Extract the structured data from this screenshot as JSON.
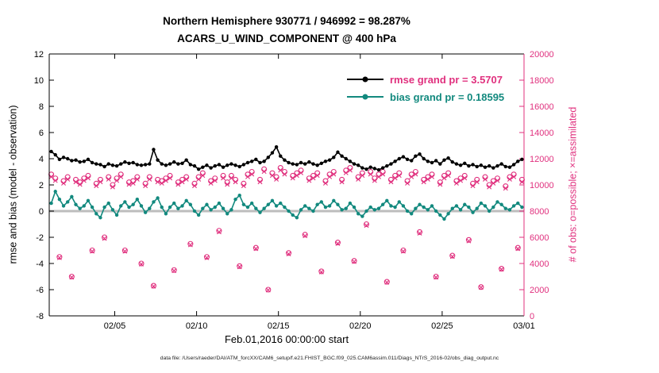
{
  "figure": {
    "title_line1": "Northern Hemisphere 930771 / 946992 = 98.287%",
    "title_line2": "ACARS_U_WIND_COMPONENT @ 400 hPa",
    "xlabel": "Feb.01,2016 00:00:00 start",
    "ylabel_left": "rmse and bias (model - observation)",
    "ylabel_right": "# of obs: o=possible; ×=assimilated",
    "datafile_note": "data file: /Users/raeder/DAI/ATM_forcXX/CAM6_setup/f.e21.FHIST_BGC.f09_025.CAM6assim.011/Diags_NTrS_2016-02/obs_diag_output.nc",
    "legend": [
      {
        "label": "rmse grand pr = 3.5707",
        "line_color": "#000000",
        "text_color": "#e0307e"
      },
      {
        "label": "bias grand pr = 0.18595",
        "line_color": "#12897e",
        "text_color": "#12897e"
      }
    ],
    "colors": {
      "rmse": "#000000",
      "bias": "#12897e",
      "obs": "#e0307e",
      "zero_line": "#bdbdbd",
      "axis": "#000000"
    }
  },
  "chart_data": {
    "type": "line",
    "title": "Northern Hemisphere 930771 / 946992 = 98.287% | ACARS_U_WIND_COMPONENT @ 400 hPa",
    "x_start_day": 0.125,
    "x_step_days": 0.25,
    "x_range": [
      0,
      29
    ],
    "y_left_range": [
      -8,
      12
    ],
    "y_right_range": [
      0,
      20000
    ],
    "y_left_ticks": [
      -8,
      -6,
      -4,
      -2,
      0,
      2,
      4,
      6,
      8,
      10,
      12
    ],
    "y_right_ticks": [
      0,
      2000,
      4000,
      6000,
      8000,
      10000,
      12000,
      14000,
      16000,
      18000,
      20000
    ],
    "x_ticks": [
      {
        "t": 4,
        "label": "02/05"
      },
      {
        "t": 9,
        "label": "02/10"
      },
      {
        "t": 14,
        "label": "02/15"
      },
      {
        "t": 19,
        "label": "02/20"
      },
      {
        "t": 24,
        "label": "02/25"
      },
      {
        "t": 29,
        "label": "03/01"
      }
    ],
    "series": [
      {
        "name": "rmse",
        "axis": "left",
        "style": "line-dot",
        "values": [
          4.55,
          4.3,
          3.95,
          4.1,
          4.0,
          3.85,
          3.9,
          3.75,
          3.8,
          3.95,
          3.7,
          3.6,
          3.55,
          3.4,
          3.6,
          3.5,
          3.45,
          3.6,
          3.75,
          3.65,
          3.7,
          3.55,
          3.5,
          3.55,
          3.6,
          4.7,
          3.9,
          3.6,
          3.5,
          3.6,
          3.75,
          3.6,
          3.65,
          3.9,
          3.55,
          3.45,
          3.2,
          3.35,
          3.5,
          3.3,
          3.45,
          3.55,
          3.35,
          3.5,
          3.6,
          3.5,
          3.4,
          3.55,
          3.7,
          3.8,
          3.95,
          3.7,
          3.8,
          4.1,
          4.45,
          4.9,
          4.2,
          3.9,
          3.7,
          3.6,
          3.55,
          3.7,
          3.6,
          3.75,
          3.6,
          3.5,
          3.65,
          3.8,
          3.9,
          4.1,
          4.5,
          4.2,
          4.0,
          3.8,
          3.6,
          3.5,
          3.3,
          3.2,
          3.35,
          3.25,
          3.15,
          3.3,
          3.45,
          3.6,
          3.8,
          4.0,
          4.15,
          3.95,
          3.85,
          4.2,
          4.35,
          4.0,
          3.8,
          3.7,
          3.85,
          3.6,
          3.9,
          4.05,
          3.75,
          3.6,
          3.5,
          3.65,
          3.45,
          3.55,
          3.4,
          3.5,
          3.35,
          3.45,
          3.3,
          3.45,
          3.6,
          3.4,
          3.35,
          3.55,
          3.8,
          3.95
        ]
      },
      {
        "name": "bias",
        "axis": "left",
        "style": "line-dot",
        "values": [
          0.6,
          1.5,
          0.9,
          0.4,
          0.7,
          1.1,
          0.5,
          0.2,
          0.4,
          0.8,
          0.3,
          -0.2,
          -0.5,
          0.3,
          0.6,
          0.1,
          -0.3,
          0.4,
          0.7,
          0.3,
          0.5,
          0.9,
          0.4,
          -0.1,
          0.2,
          0.7,
          1.0,
          0.3,
          -0.2,
          0.3,
          0.6,
          0.2,
          0.4,
          0.8,
          0.5,
          0.0,
          -0.3,
          0.2,
          0.5,
          0.1,
          0.3,
          0.6,
          0.2,
          -0.2,
          0.1,
          0.9,
          1.2,
          0.5,
          0.3,
          0.6,
          0.2,
          -0.1,
          0.2,
          0.5,
          0.8,
          0.4,
          0.6,
          0.3,
          0.0,
          -0.3,
          -0.5,
          0.1,
          0.4,
          0.2,
          0.0,
          0.5,
          0.7,
          0.3,
          0.4,
          0.8,
          0.5,
          0.1,
          0.2,
          0.6,
          0.3,
          -0.2,
          -0.4,
          0.0,
          0.3,
          0.1,
          0.2,
          0.5,
          0.8,
          0.4,
          0.3,
          0.7,
          0.4,
          0.0,
          -0.2,
          0.2,
          0.5,
          0.3,
          0.1,
          0.4,
          0.0,
          -0.3,
          -0.6,
          -0.2,
          0.2,
          0.4,
          0.1,
          0.5,
          0.3,
          -0.1,
          0.2,
          0.6,
          0.4,
          0.0,
          0.3,
          0.7,
          0.5,
          0.2,
          0.1,
          0.4,
          0.6,
          0.3
        ]
      },
      {
        "name": "possible",
        "axis": "right",
        "style": "circle",
        "values": [
          10800,
          10500,
          4500,
          10300,
          10600,
          3000,
          10400,
          10200,
          10500,
          10700,
          5000,
          10100,
          10400,
          6000,
          10600,
          10000,
          10500,
          10800,
          5000,
          10200,
          10300,
          10600,
          4000,
          10100,
          10600,
          2300,
          10400,
          10300,
          10500,
          10700,
          3500,
          10200,
          10400,
          10600,
          5500,
          10100,
          10600,
          10900,
          4500,
          10300,
          10500,
          6500,
          10700,
          10200,
          10700,
          10400,
          3800,
          10100,
          10800,
          11000,
          5200,
          10400,
          11200,
          2000,
          10900,
          10600,
          11300,
          11000,
          4800,
          10700,
          10900,
          11100,
          6200,
          10500,
          10700,
          10900,
          3400,
          10300,
          10800,
          11000,
          5600,
          10400,
          11100,
          11300,
          4200,
          10600,
          10900,
          7000,
          11000,
          10500,
          10800,
          11000,
          2600,
          10400,
          10700,
          10900,
          5000,
          10300,
          10800,
          11000,
          6400,
          10400,
          10600,
          10800,
          3000,
          10200,
          10700,
          10900,
          4600,
          10300,
          10500,
          10700,
          5800,
          10100,
          10400,
          2200,
          10600,
          10000,
          10300,
          10500,
          3600,
          9900,
          10600,
          10800,
          5200,
          10400
        ]
      },
      {
        "name": "assimilated",
        "axis": "right",
        "style": "cross",
        "values": [
          10620,
          10330,
          4440,
          10130,
          10430,
          2950,
          10230,
          10040,
          10330,
          10520,
          4930,
          9930,
          10230,
          5910,
          10430,
          9840,
          10330,
          10620,
          4930,
          10040,
          10130,
          10430,
          3950,
          9930,
          10430,
          2260,
          10230,
          10130,
          10330,
          10520,
          3450,
          10040,
          10230,
          10430,
          5420,
          9930,
          10430,
          10720,
          4440,
          10130,
          10330,
          6410,
          10520,
          10040,
          10520,
          10230,
          3740,
          9930,
          10620,
          10820,
          5130,
          10230,
          11020,
          1970,
          10720,
          10430,
          11120,
          10820,
          4730,
          10520,
          10720,
          10920,
          6110,
          10330,
          10520,
          10720,
          3350,
          10130,
          10620,
          10820,
          5520,
          10230,
          10920,
          11120,
          4140,
          10430,
          10720,
          6900,
          10820,
          10330,
          10620,
          10820,
          2560,
          10230,
          10520,
          10720,
          4930,
          10130,
          10620,
          10820,
          6310,
          10230,
          10430,
          10620,
          2950,
          10040,
          10520,
          10720,
          4530,
          10130,
          10330,
          10520,
          5720,
          9930,
          10230,
          2170,
          10430,
          9840,
          10130,
          10330,
          3550,
          9740,
          10430,
          10620,
          5130,
          10230
        ]
      }
    ]
  }
}
